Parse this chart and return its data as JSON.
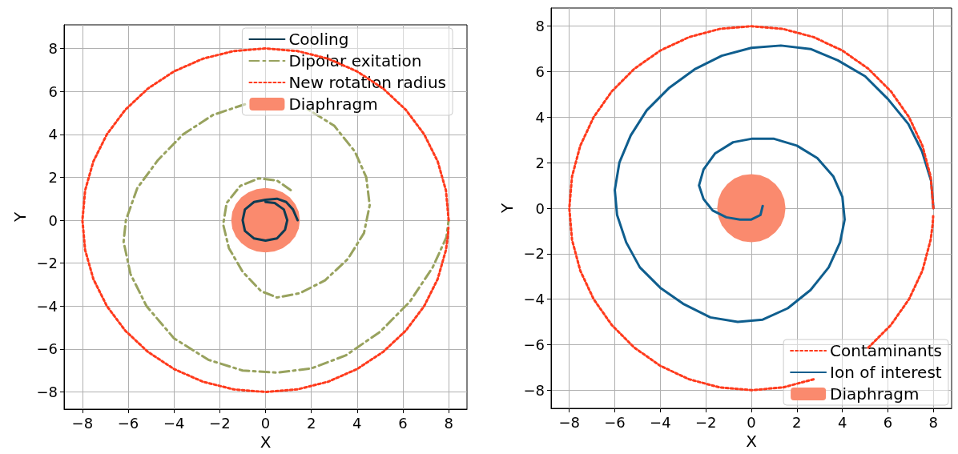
{
  "chart_data": [
    {
      "type": "line",
      "xlabel": "X",
      "ylabel": "Y",
      "xlim": [
        -8.8,
        8.8
      ],
      "ylim": [
        -8.8,
        9.1
      ],
      "xticks": [
        {
          "value": -8,
          "label": "−8"
        },
        {
          "value": -6,
          "label": "−6"
        },
        {
          "value": -4,
          "label": "−4"
        },
        {
          "value": -2,
          "label": "−2"
        },
        0,
        2,
        4,
        6,
        8
      ],
      "yticks": [
        {
          "value": -8,
          "label": "−8"
        },
        {
          "value": -6,
          "label": "−6"
        },
        {
          "value": -4,
          "label": "−4"
        },
        {
          "value": -2,
          "label": "−2"
        },
        0,
        2,
        4,
        6,
        8
      ],
      "grid": true,
      "legend": "top right",
      "series": [
        {
          "name": "Cooling",
          "color": "#0c3b52",
          "line_style": "solid",
          "x": [
            1.4,
            1.2,
            0.9,
            0.5,
            0,
            -0.5,
            -0.9,
            -1.0,
            -0.9,
            -0.5,
            0,
            0.5,
            0.85,
            0.95,
            0.8,
            0.4,
            0
          ],
          "values": [
            0,
            0.5,
            0.85,
            1.0,
            0.95,
            0.85,
            0.5,
            0,
            -0.5,
            -0.85,
            -0.95,
            -0.85,
            -0.45,
            0,
            0.5,
            0.8,
            0.85
          ]
        },
        {
          "name": "Dipolar exitation",
          "color": "#98a25e",
          "line_style": "dashed",
          "x": [
            1.1,
            0.5,
            -0.3,
            -1.1,
            -1.7,
            -1.85,
            -1.6,
            -1,
            -0.2,
            0.5,
            1.5,
            2.6,
            3.6,
            4.3,
            4.55,
            4.4,
            3.9,
            3,
            1.8,
            0.5,
            -0.9,
            -2.3,
            -3.6,
            -4.7,
            -5.6,
            -6.1,
            -6.2,
            -5.9,
            -5.2,
            -4,
            -2.5,
            -1,
            0.5,
            2,
            3.5,
            5,
            6.3,
            7.3,
            7.9,
            8
          ],
          "values": [
            1.4,
            1.85,
            1.95,
            1.6,
            0.8,
            -0.2,
            -1.3,
            -2.4,
            -3.3,
            -3.6,
            -3.4,
            -2.8,
            -1.8,
            -0.6,
            0.7,
            2,
            3.2,
            4.4,
            5.2,
            null,
            5.4,
            4.9,
            4,
            2.8,
            1.5,
            0,
            -1,
            -2.5,
            -4,
            -5.5,
            -6.5,
            -7,
            -7.1,
            -6.9,
            -6.3,
            -5.2,
            -3.8,
            -2.2,
            -0.8,
            0
          ]
        },
        {
          "name": "New rotation radius",
          "color": "#ff3a1c",
          "line_style": "dotted",
          "x": [
            8,
            7.88,
            7.52,
            6.93,
            6.13,
            5.14,
            4,
            2.74,
            1.39,
            0,
            -1.39,
            -2.74,
            -4,
            -5.14,
            -6.13,
            -6.93,
            -7.52,
            -7.88,
            -8,
            -7.88,
            -7.52,
            -6.93,
            -6.13,
            -5.14,
            -4,
            -2.74,
            -1.39,
            0,
            1.39,
            2.74,
            4,
            5.14,
            6.13,
            6.93,
            7.52,
            7.88,
            7.97,
            7.99
          ],
          "values": [
            0,
            1.39,
            2.74,
            4,
            5.14,
            6.13,
            6.93,
            7.52,
            7.88,
            8,
            7.88,
            7.52,
            6.93,
            6.13,
            5.14,
            4,
            2.74,
            1.39,
            0,
            -1.39,
            -2.74,
            -4,
            -5.14,
            -6.13,
            -6.93,
            -7.52,
            -7.88,
            -8,
            -7.88,
            -7.52,
            -6.93,
            -6.13,
            -5.14,
            -4,
            -2.74,
            -1.39,
            -0.7,
            -0.35
          ]
        },
        {
          "name": "Diaphragm",
          "type": "area",
          "color": "#fa8a6e",
          "x": [
            1.5,
            1.45,
            1.3,
            1.06,
            0.75,
            0.39,
            0,
            -0.39,
            -0.75,
            -1.06,
            -1.3,
            -1.45,
            -1.5,
            -1.45,
            -1.3,
            -1.06,
            -0.75,
            -0.39,
            0,
            0.39,
            0.75,
            1.06,
            1.3,
            1.45
          ],
          "values": [
            0,
            0.39,
            0.75,
            1.06,
            1.3,
            1.45,
            1.5,
            1.45,
            1.3,
            1.06,
            0.75,
            0.39,
            0,
            -0.39,
            -0.75,
            -1.06,
            -1.3,
            -1.45,
            -1.5,
            -1.45,
            -1.3,
            -1.06,
            -0.75,
            -0.39
          ]
        }
      ]
    },
    {
      "type": "line",
      "xlabel": "X",
      "ylabel": "Y",
      "xlim": [
        -8.8,
        8.8
      ],
      "ylim": [
        -8.8,
        8.8
      ],
      "xticks": [
        {
          "value": -8,
          "label": "−8"
        },
        {
          "value": -6,
          "label": "−6"
        },
        {
          "value": -4,
          "label": "−4"
        },
        {
          "value": -2,
          "label": "−2"
        },
        0,
        2,
        4,
        6,
        8
      ],
      "yticks": [
        {
          "value": -8,
          "label": "−8"
        },
        {
          "value": -6,
          "label": "−6"
        },
        {
          "value": -4,
          "label": "−4"
        },
        {
          "value": -2,
          "label": "−2"
        },
        0,
        2,
        4,
        6,
        8
      ],
      "grid": true,
      "legend": "bottom right",
      "series": [
        {
          "name": "Contaminants",
          "color": "#ff3a1c",
          "line_style": "dotted",
          "x": [
            8,
            7.88,
            7.52,
            6.93,
            6.13,
            5.14,
            4,
            2.74,
            1.39,
            0,
            -1.39,
            -2.74,
            -4,
            -5.14,
            -6.13,
            -6.93,
            -7.52,
            -7.88,
            -8,
            -7.88,
            -7.52,
            -6.93,
            -6.13,
            -5.14,
            -4,
            -2.74,
            -1.39,
            0,
            1.39,
            2.74,
            4,
            5.14,
            6.13,
            6.93,
            7.52,
            7.88,
            7.97,
            7.99
          ],
          "values": [
            0,
            1.39,
            2.74,
            4,
            5.14,
            6.13,
            6.93,
            7.52,
            7.88,
            8,
            7.88,
            7.52,
            6.93,
            6.13,
            5.14,
            4,
            2.74,
            1.39,
            0,
            -1.39,
            -2.74,
            -4,
            -5.14,
            -6.13,
            -6.93,
            -7.52,
            -7.88,
            -8,
            -7.88,
            -7.52,
            null,
            -6.13,
            -5.14,
            -4,
            -2.74,
            -1.39,
            -0.7,
            -0.35
          ]
        },
        {
          "name": "Ion of interest",
          "color": "#0f5e8e",
          "line_style": "solid",
          "x": [
            0.5,
            0.4,
            0,
            -0.5,
            -1.1,
            -1.7,
            -2.1,
            -2.3,
            -2.1,
            -1.6,
            -0.8,
            0,
            1,
            2,
            2.9,
            3.6,
            4.0,
            4.1,
            3.9,
            3.4,
            2.6,
            1.6,
            0.5,
            -0.6,
            -1.8,
            -3,
            -4,
            -4.9,
            -5.5,
            -5.9,
            -6,
            -5.8,
            -5.3,
            -4.6,
            -3.6,
            -2.5,
            -1.3,
            0,
            1.3,
            2.6,
            3.8,
            5,
            6,
            6.9,
            7.5,
            7.9,
            8
          ],
          "values": [
            0.1,
            -0.3,
            -0.5,
            -0.5,
            -0.4,
            -0.1,
            0.4,
            1.0,
            1.7,
            2.4,
            2.9,
            3.05,
            3.05,
            2.75,
            2.2,
            1.4,
            0.5,
            -0.5,
            -1.5,
            -2.6,
            -3.6,
            -4.4,
            -4.9,
            -5.0,
            -4.8,
            -4.2,
            -3.5,
            -2.6,
            -1.5,
            -0.3,
            0.8,
            2,
            3.2,
            4.3,
            5.3,
            6.1,
            6.7,
            7.05,
            7.15,
            7,
            6.5,
            5.8,
            4.8,
            3.7,
            2.5,
            1.2,
            0
          ]
        },
        {
          "name": "Diaphragm",
          "type": "area",
          "color": "#fa8a6e",
          "x": [
            1.5,
            1.45,
            1.3,
            1.06,
            0.75,
            0.39,
            0,
            -0.39,
            -0.75,
            -1.06,
            -1.3,
            -1.45,
            -1.5,
            -1.45,
            -1.3,
            -1.06,
            -0.75,
            -0.39,
            0,
            0.39,
            0.75,
            1.06,
            1.3,
            1.45
          ],
          "values": [
            0,
            0.39,
            0.75,
            1.06,
            1.3,
            1.45,
            1.5,
            1.45,
            1.3,
            1.06,
            0.75,
            0.39,
            0,
            -0.39,
            -0.75,
            -1.06,
            -1.3,
            -1.45,
            -1.5,
            -1.45,
            -1.3,
            -1.06,
            -0.75,
            -0.39
          ]
        }
      ]
    }
  ]
}
